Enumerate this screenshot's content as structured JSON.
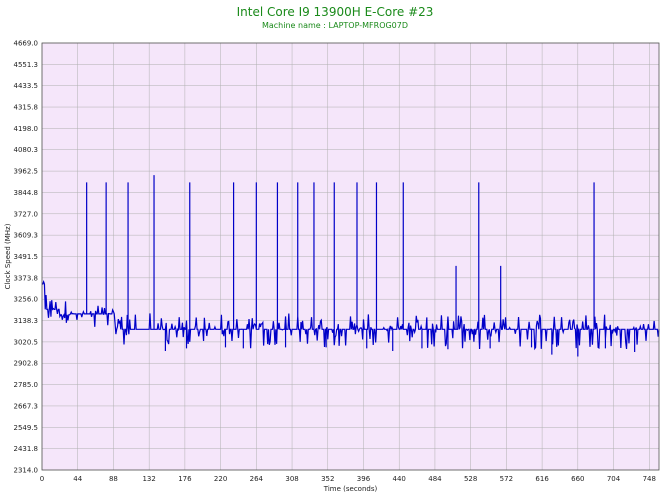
{
  "chart_data": {
    "type": "line",
    "title": "Intel Core I9 13900H E-Core #23",
    "subtitle": "Machine name : LAPTOP-MFROG07D",
    "xlabel": "Time (seconds)",
    "ylabel": "Clock Speed (MHz)",
    "xlim": [
      0,
      760
    ],
    "ylim": [
      2314.0,
      4669.0
    ],
    "x_ticks": [
      "0",
      "44",
      "88",
      "132",
      "176",
      "220",
      "264",
      "308",
      "352",
      "396",
      "440",
      "484",
      "528",
      "572",
      "616",
      "660",
      "704",
      "748"
    ],
    "y_ticks": [
      "4669.0",
      "4551.3",
      "4433.5",
      "4315.8",
      "4198.0",
      "4080.3",
      "3962.5",
      "3844.8",
      "3727.0",
      "3609.3",
      "3491.5",
      "3373.8",
      "3256.0",
      "3138.3",
      "3020.5",
      "2902.8",
      "2785.0",
      "2667.3",
      "2549.5",
      "2431.8",
      "2314.0"
    ],
    "grid": true,
    "colors": {
      "plot_bg": "#f5e6fa",
      "grid": "#b0b0b0",
      "line": "#0000c8",
      "title": "#1a8a1a"
    },
    "series": [
      {
        "baseline": 3090,
        "segments": [
          {
            "x0": 0,
            "x1": 4,
            "base": 3340,
            "min": 3200,
            "max": 3390
          },
          {
            "x0": 4,
            "x1": 22,
            "base": 3200,
            "min": 3140,
            "max": 3290
          },
          {
            "x0": 22,
            "x1": 35,
            "base": 3170,
            "min": 3120,
            "max": 3250
          },
          {
            "x0": 35,
            "x1": 90,
            "base": 3175,
            "min": 3100,
            "max": 3220
          },
          {
            "x0": 90,
            "x1": 160,
            "base": 3090,
            "min": 3000,
            "max": 3180
          },
          {
            "x0": 160,
            "x1": 740,
            "base": 3090,
            "min": 2980,
            "max": 3180
          },
          {
            "x0": 740,
            "x1": 760,
            "base": 3090,
            "min": 3000,
            "max": 3150
          }
        ],
        "spikes": [
          {
            "x": 55,
            "y": 3900
          },
          {
            "x": 79,
            "y": 3900
          },
          {
            "x": 106,
            "y": 3900
          },
          {
            "x": 138,
            "y": 3940
          },
          {
            "x": 182,
            "y": 3900
          },
          {
            "x": 236,
            "y": 3900
          },
          {
            "x": 264,
            "y": 3900
          },
          {
            "x": 290,
            "y": 3900
          },
          {
            "x": 315,
            "y": 3900
          },
          {
            "x": 335,
            "y": 3900
          },
          {
            "x": 360,
            "y": 3900
          },
          {
            "x": 388,
            "y": 3900
          },
          {
            "x": 412,
            "y": 3900
          },
          {
            "x": 445,
            "y": 3900
          },
          {
            "x": 510,
            "y": 3440
          },
          {
            "x": 538,
            "y": 3900
          },
          {
            "x": 565,
            "y": 3440
          },
          {
            "x": 680,
            "y": 3900
          }
        ],
        "dips": [
          {
            "x": 152,
            "y": 2970
          },
          {
            "x": 178,
            "y": 2985
          },
          {
            "x": 226,
            "y": 2990
          },
          {
            "x": 248,
            "y": 2985
          },
          {
            "x": 300,
            "y": 2990
          },
          {
            "x": 350,
            "y": 2990
          },
          {
            "x": 400,
            "y": 2985
          },
          {
            "x": 432,
            "y": 2970
          },
          {
            "x": 468,
            "y": 2985
          },
          {
            "x": 500,
            "y": 2980
          },
          {
            "x": 552,
            "y": 2985
          },
          {
            "x": 603,
            "y": 2990
          },
          {
            "x": 628,
            "y": 2950
          },
          {
            "x": 660,
            "y": 2940
          },
          {
            "x": 694,
            "y": 2985
          },
          {
            "x": 730,
            "y": 2965
          }
        ]
      }
    ]
  }
}
